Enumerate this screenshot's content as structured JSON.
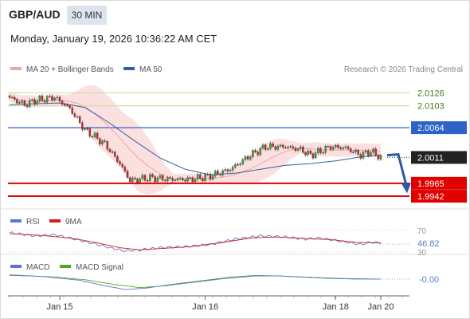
{
  "header": {
    "symbol": "GBP/AUD",
    "timeframe": "30 MIN",
    "datetime": "Monday, January 19, 2026 10:36:22 AM CET"
  },
  "copyright": "Research © 2026 Trading Central",
  "colors": {
    "ma20": "#f4a3a3",
    "bollinger_fill": "#fcdada",
    "ma50": "#2f5fa8",
    "green_level": "#c8e2a0",
    "blue_level": "#2d62c9",
    "red_level": "#e00000",
    "bull": "#3c9f3c",
    "bear": "#c8282b",
    "rsi": "#5b78c9",
    "rsi_ma": "#d91c1c",
    "macd": "#5b78c9",
    "macd_signal": "#55a628"
  },
  "chart_data": [
    {
      "type": "line",
      "panel": "price",
      "legend": [
        "MA 20 + Bollinger Bands",
        "MA 50"
      ],
      "ylim": [
        1.9925,
        2.0155
      ],
      "x_ticks": [
        "Jan 15",
        "Jan 16",
        "Jan 18",
        "Jan 20"
      ],
      "close_anchors": [
        [
          0,
          2.0118
        ],
        [
          6,
          2.0105
        ],
        [
          10,
          2.0112
        ],
        [
          18,
          2.0118
        ],
        [
          24,
          2.0098
        ],
        [
          30,
          2.006
        ],
        [
          38,
          2.0035
        ],
        [
          44,
          2.0
        ],
        [
          48,
          1.997
        ],
        [
          56,
          1.9975
        ],
        [
          64,
          1.9972
        ],
        [
          72,
          1.9972
        ],
        [
          80,
          1.9978
        ],
        [
          88,
          1.999
        ],
        [
          96,
          2.0015
        ],
        [
          102,
          2.003
        ],
        [
          110,
          2.003
        ],
        [
          116,
          2.0025
        ],
        [
          120,
          2.0015
        ],
        [
          128,
          2.003
        ],
        [
          134,
          2.0028
        ],
        [
          140,
          2.0015
        ],
        [
          144,
          2.0022
        ],
        [
          148,
          2.0011
        ]
      ],
      "ma50_anchors": [
        [
          0,
          2.0105
        ],
        [
          20,
          2.0108
        ],
        [
          30,
          2.01
        ],
        [
          40,
          2.0072
        ],
        [
          50,
          2.004
        ],
        [
          60,
          2.001
        ],
        [
          70,
          1.999
        ],
        [
          80,
          1.998
        ],
        [
          90,
          1.9983
        ],
        [
          100,
          1.999
        ],
        [
          110,
          1.9997
        ],
        [
          120,
          2.0
        ],
        [
          130,
          2.0005
        ],
        [
          140,
          2.0012
        ],
        [
          148,
          2.0015
        ]
      ],
      "levels": [
        {
          "value": 2.0126,
          "label": "2.0126",
          "style": "green"
        },
        {
          "value": 2.0103,
          "label": "2.0103",
          "style": "green"
        },
        {
          "value": 2.0064,
          "label": "2.0064",
          "style": "blue"
        },
        {
          "value": 2.0011,
          "label": "2.0011",
          "style": "current"
        },
        {
          "value": 1.9965,
          "label": "1.9965",
          "style": "red"
        },
        {
          "value": 1.9942,
          "label": "1.9942",
          "style": "red"
        }
      ],
      "forecast_arrow": {
        "from": 2.0015,
        "to": 1.995
      }
    },
    {
      "type": "line",
      "panel": "rsi",
      "series": [
        {
          "name": "RSI"
        },
        {
          "name": "9MA"
        }
      ],
      "ylim": [
        30,
        70
      ],
      "ticks": [
        "70",
        "30"
      ],
      "current_label": "46.82",
      "rsi_anchors": [
        [
          0,
          66
        ],
        [
          10,
          60
        ],
        [
          18,
          62
        ],
        [
          26,
          54
        ],
        [
          34,
          45
        ],
        [
          40,
          38
        ],
        [
          46,
          32
        ],
        [
          52,
          34
        ],
        [
          60,
          38
        ],
        [
          70,
          40
        ],
        [
          80,
          44
        ],
        [
          90,
          54
        ],
        [
          100,
          60
        ],
        [
          110,
          58
        ],
        [
          118,
          54
        ],
        [
          124,
          56
        ],
        [
          132,
          50
        ],
        [
          140,
          44
        ],
        [
          144,
          48
        ],
        [
          148,
          46.82
        ]
      ],
      "ma_anchors": [
        [
          0,
          64
        ],
        [
          12,
          61
        ],
        [
          24,
          56
        ],
        [
          34,
          48
        ],
        [
          44,
          38
        ],
        [
          52,
          34
        ],
        [
          62,
          37
        ],
        [
          72,
          40
        ],
        [
          84,
          47
        ],
        [
          96,
          56
        ],
        [
          106,
          58
        ],
        [
          118,
          55
        ],
        [
          128,
          53
        ],
        [
          138,
          48
        ],
        [
          148,
          47
        ]
      ]
    },
    {
      "type": "line",
      "panel": "macd",
      "series": [
        {
          "name": "MACD"
        },
        {
          "name": "MACD Signal"
        }
      ],
      "current_label": "-0.00",
      "macd_anchors": [
        [
          0,
          0.0006
        ],
        [
          14,
          0.0003
        ],
        [
          28,
          -0.0003
        ],
        [
          38,
          -0.0012
        ],
        [
          46,
          -0.0018
        ],
        [
          54,
          -0.0016
        ],
        [
          64,
          -0.001
        ],
        [
          76,
          -0.0004
        ],
        [
          88,
          0.0002
        ],
        [
          98,
          0.0005
        ],
        [
          108,
          0.0004
        ],
        [
          118,
          0.0002
        ],
        [
          128,
          0.0
        ],
        [
          138,
          -0.0001
        ],
        [
          148,
          -0.0001
        ]
      ],
      "signal_anchors": [
        [
          0,
          0.0005
        ],
        [
          16,
          0.0003
        ],
        [
          30,
          -0.0002
        ],
        [
          42,
          -0.001
        ],
        [
          52,
          -0.0015
        ],
        [
          62,
          -0.0012
        ],
        [
          74,
          -0.0006
        ],
        [
          86,
          0.0
        ],
        [
          98,
          0.0004
        ],
        [
          108,
          0.0004
        ],
        [
          120,
          0.0002
        ],
        [
          132,
          0.0
        ],
        [
          148,
          -0.0001
        ]
      ],
      "ylim": [
        -0.0022,
        0.0012
      ]
    }
  ]
}
